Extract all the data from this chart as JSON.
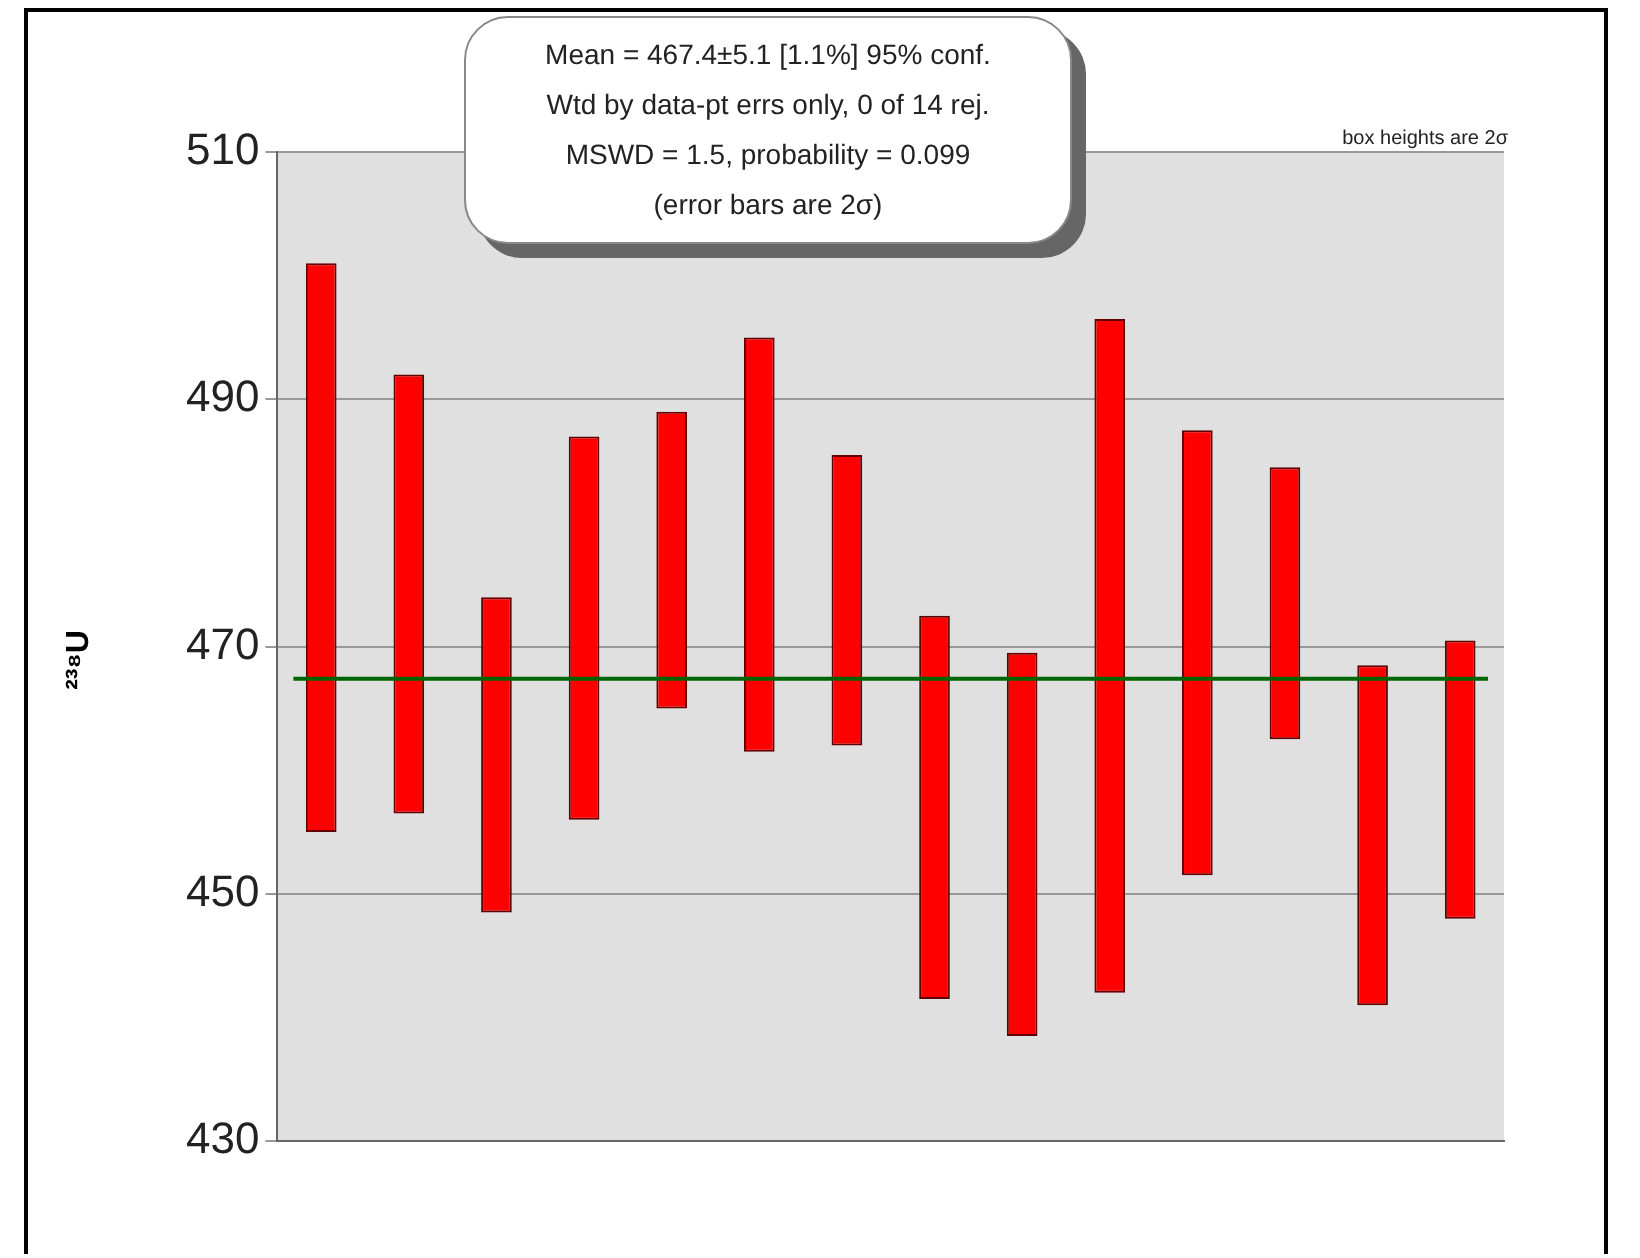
{
  "chart_data": {
    "type": "bar",
    "ylabel": "²³⁸U",
    "categories": [
      null,
      null,
      null,
      null,
      null,
      null,
      null,
      null,
      null,
      null,
      null,
      null,
      null,
      null
    ],
    "base": [
      455,
      456.5,
      448.5,
      456,
      465,
      461.5,
      462,
      441.5,
      438.5,
      442,
      451.5,
      462.5,
      441,
      448
    ],
    "values": [
      46,
      35.5,
      25.5,
      31,
      24,
      33.5,
      23.5,
      31,
      31,
      54.5,
      36,
      22,
      27.5,
      22.5
    ],
    "color": "#ff0000",
    "ylim": [
      430,
      510
    ],
    "yticks": [
      430,
      450,
      470,
      490,
      510
    ],
    "grid": "y",
    "legend": false,
    "ref_lines": [
      {
        "axis": "y",
        "value": 467.4,
        "color": "#006400"
      }
    ],
    "annotations": [
      "Mean = 467.4±5.1  [1.1%]  95% conf.",
      "Wtd by data-pt errs only, 0 of 14 rej.",
      "MSWD = 1.5, probability = 0.099",
      "(error bars are 2σ)",
      "box heights are 2σ"
    ]
  }
}
